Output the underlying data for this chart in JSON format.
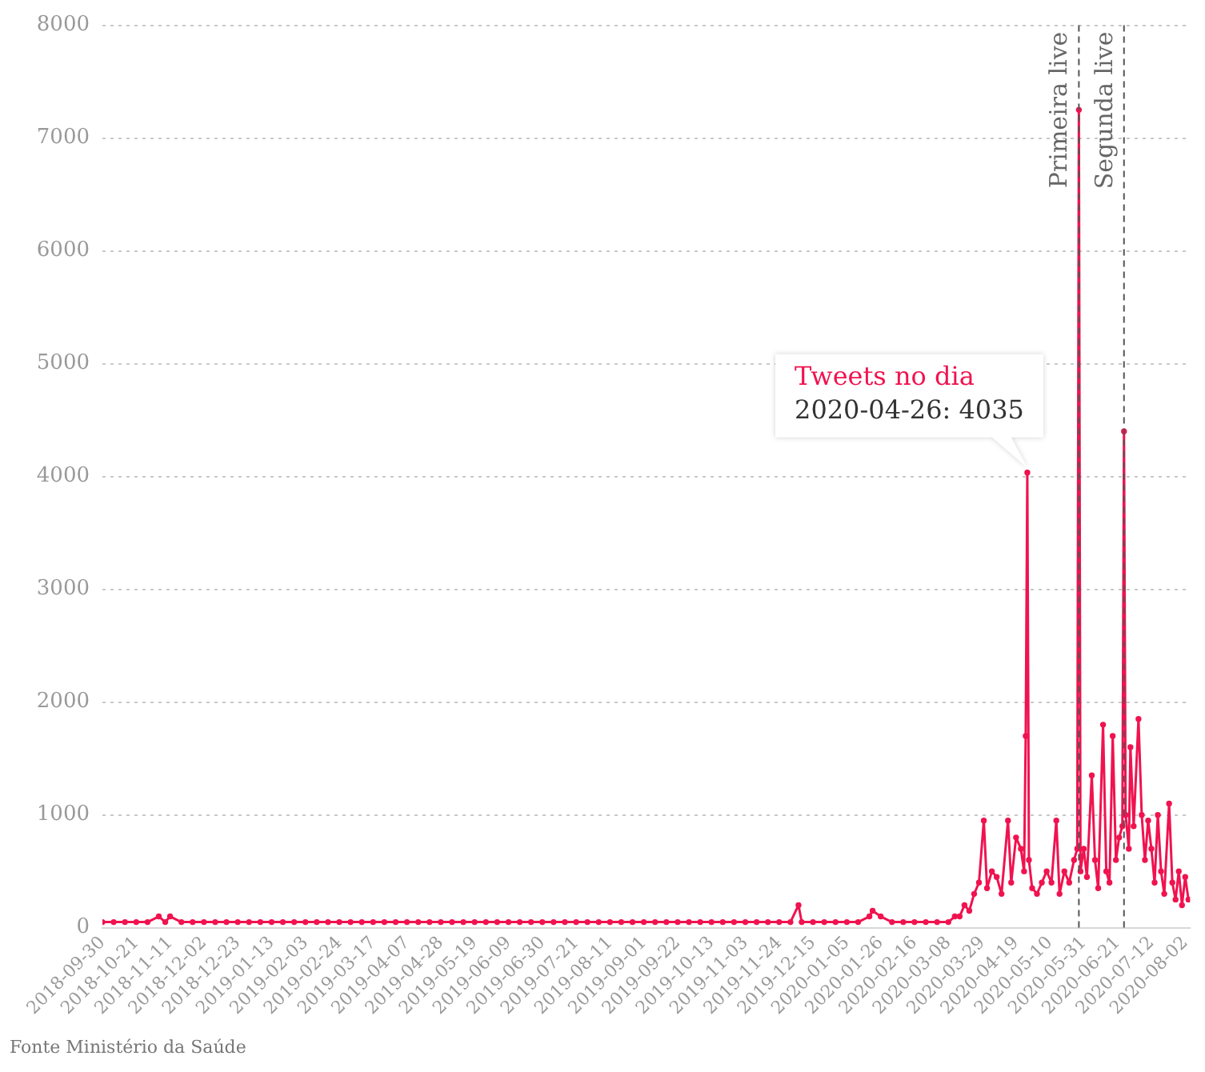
{
  "chart_data": {
    "type": "line",
    "marker": "circle",
    "grid": "y",
    "legend": false,
    "x": [
      "2018-09-30",
      "2018-10-07",
      "2018-10-14",
      "2018-10-21",
      "2018-10-28",
      "2018-11-04",
      "2018-11-08",
      "2018-11-11",
      "2018-11-18",
      "2018-11-25",
      "2018-12-02",
      "2018-12-09",
      "2018-12-16",
      "2018-12-23",
      "2018-12-30",
      "2019-01-06",
      "2019-01-13",
      "2019-01-20",
      "2019-01-27",
      "2019-02-03",
      "2019-02-10",
      "2019-02-17",
      "2019-02-24",
      "2019-03-03",
      "2019-03-10",
      "2019-03-17",
      "2019-03-24",
      "2019-03-31",
      "2019-04-07",
      "2019-04-14",
      "2019-04-21",
      "2019-04-28",
      "2019-05-05",
      "2019-05-12",
      "2019-05-19",
      "2019-05-26",
      "2019-06-02",
      "2019-06-09",
      "2019-06-16",
      "2019-06-23",
      "2019-06-30",
      "2019-07-07",
      "2019-07-14",
      "2019-07-21",
      "2019-07-28",
      "2019-08-04",
      "2019-08-11",
      "2019-08-18",
      "2019-08-25",
      "2019-09-01",
      "2019-09-08",
      "2019-09-15",
      "2019-09-22",
      "2019-09-29",
      "2019-10-06",
      "2019-10-13",
      "2019-10-20",
      "2019-10-27",
      "2019-11-03",
      "2019-11-10",
      "2019-11-17",
      "2019-11-24",
      "2019-12-01",
      "2019-12-06",
      "2019-12-08",
      "2019-12-15",
      "2019-12-22",
      "2019-12-29",
      "2020-01-05",
      "2020-01-12",
      "2020-01-19",
      "2020-01-21",
      "2020-01-26",
      "2020-02-02",
      "2020-02-09",
      "2020-02-16",
      "2020-02-23",
      "2020-03-01",
      "2020-03-08",
      "2020-03-12",
      "2020-03-15",
      "2020-03-18",
      "2020-03-21",
      "2020-03-24",
      "2020-03-27",
      "2020-03-30",
      "2020-04-01",
      "2020-04-04",
      "2020-04-07",
      "2020-04-10",
      "2020-04-14",
      "2020-04-16",
      "2020-04-19",
      "2020-04-22",
      "2020-04-24",
      "2020-04-25",
      "2020-04-26",
      "2020-04-27",
      "2020-04-29",
      "2020-05-02",
      "2020-05-05",
      "2020-05-08",
      "2020-05-11",
      "2020-05-14",
      "2020-05-16",
      "2020-05-19",
      "2020-05-22",
      "2020-05-25",
      "2020-05-27",
      "2020-05-28",
      "2020-05-29",
      "2020-05-31",
      "2020-06-02",
      "2020-06-05",
      "2020-06-07",
      "2020-06-09",
      "2020-06-12",
      "2020-06-14",
      "2020-06-16",
      "2020-06-18",
      "2020-06-20",
      "2020-06-22",
      "2020-06-24",
      "2020-06-25",
      "2020-06-26",
      "2020-06-28",
      "2020-06-29",
      "2020-07-01",
      "2020-07-04",
      "2020-07-06",
      "2020-07-08",
      "2020-07-10",
      "2020-07-12",
      "2020-07-14",
      "2020-07-16",
      "2020-07-18",
      "2020-07-20",
      "2020-07-23",
      "2020-07-25",
      "2020-07-27",
      "2020-07-29",
      "2020-07-31",
      "2020-08-02",
      "2020-08-04"
    ],
    "series": [
      {
        "name": "Tweets no dia",
        "color": "#f0134f",
        "values": [
          50,
          50,
          50,
          50,
          50,
          100,
          50,
          100,
          50,
          50,
          50,
          50,
          50,
          50,
          50,
          50,
          50,
          50,
          50,
          50,
          50,
          50,
          50,
          50,
          50,
          50,
          50,
          50,
          50,
          50,
          50,
          50,
          50,
          50,
          50,
          50,
          50,
          50,
          50,
          50,
          50,
          50,
          50,
          50,
          50,
          50,
          50,
          50,
          50,
          50,
          50,
          50,
          50,
          50,
          50,
          50,
          50,
          50,
          50,
          50,
          50,
          50,
          50,
          200,
          50,
          50,
          50,
          50,
          50,
          50,
          100,
          150,
          100,
          50,
          50,
          50,
          50,
          50,
          50,
          100,
          100,
          200,
          150,
          300,
          400,
          950,
          350,
          500,
          450,
          300,
          950,
          400,
          800,
          700,
          500,
          1700,
          4035,
          600,
          350,
          300,
          400,
          500,
          400,
          950,
          300,
          500,
          400,
          600,
          700,
          7250,
          500,
          700,
          450,
          1350,
          600,
          350,
          1800,
          500,
          400,
          1700,
          600,
          800,
          900,
          4400,
          1000,
          700,
          1600,
          900,
          1850,
          1000,
          600,
          950,
          700,
          400,
          1000,
          500,
          300,
          1100,
          400,
          250,
          500,
          200,
          450,
          250
        ]
      }
    ],
    "xlim": [
      "2018-09-30",
      "2020-08-05"
    ],
    "xticks": [
      "2018-09-30",
      "2018-10-21",
      "2018-11-11",
      "2018-12-02",
      "2018-12-23",
      "2019-01-13",
      "2019-02-03",
      "2019-02-24",
      "2019-03-17",
      "2019-04-07",
      "2019-04-28",
      "2019-05-19",
      "2019-06-09",
      "2019-06-30",
      "2019-07-21",
      "2019-08-11",
      "2019-09-01",
      "2019-09-22",
      "2019-10-13",
      "2019-11-03",
      "2019-11-24",
      "2019-12-15",
      "2020-01-05",
      "2020-01-26",
      "2020-02-16",
      "2020-03-08",
      "2020-03-29",
      "2020-04-19",
      "2020-05-10",
      "2020-05-31",
      "2020-06-21",
      "2020-07-12",
      "2020-08-02"
    ],
    "ylim": [
      0,
      8000
    ],
    "yticks": [
      0,
      1000,
      2000,
      3000,
      4000,
      5000,
      6000,
      7000,
      8000
    ],
    "ref_lines": [
      {
        "axis": "x",
        "value": "2020-05-28",
        "label": "Primeira live",
        "line_style": "dashed",
        "color": "#555555"
      },
      {
        "axis": "x",
        "value": "2020-06-25",
        "label": "Segunda live",
        "line_style": "dashed",
        "color": "#555555"
      }
    ],
    "annotations": [
      {
        "text": "2020-04-26: 4035",
        "x": "2020-04-26",
        "y": 4035
      },
      "Fonte Ministério da Saúde"
    ]
  }
}
